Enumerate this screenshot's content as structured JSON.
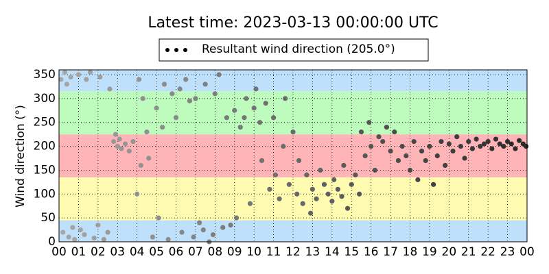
{
  "chart_data": {
    "type": "scatter",
    "title": "Latest time: 2023-03-13 00:00:00 UTC",
    "ylabel": "Wind direction (°)",
    "xlim": [
      0,
      24
    ],
    "ylim": [
      0,
      360
    ],
    "xticks": [
      {
        "value": 0,
        "label": "00"
      },
      {
        "value": 1,
        "label": "01"
      },
      {
        "value": 2,
        "label": "02"
      },
      {
        "value": 3,
        "label": "03"
      },
      {
        "value": 4,
        "label": "04"
      },
      {
        "value": 5,
        "label": "05"
      },
      {
        "value": 6,
        "label": "06"
      },
      {
        "value": 7,
        "label": "07"
      },
      {
        "value": 8,
        "label": "08"
      },
      {
        "value": 9,
        "label": "09"
      },
      {
        "value": 10,
        "label": "10"
      },
      {
        "value": 11,
        "label": "11"
      },
      {
        "value": 12,
        "label": "12"
      },
      {
        "value": 13,
        "label": "13"
      },
      {
        "value": 14,
        "label": "14"
      },
      {
        "value": 15,
        "label": "15"
      },
      {
        "value": 16,
        "label": "16"
      },
      {
        "value": 17,
        "label": "17"
      },
      {
        "value": 18,
        "label": "18"
      },
      {
        "value": 19,
        "label": "19"
      },
      {
        "value": 20,
        "label": "20"
      },
      {
        "value": 21,
        "label": "21"
      },
      {
        "value": 22,
        "label": "22"
      },
      {
        "value": 23,
        "label": "23"
      },
      {
        "value": 24,
        "label": "00"
      }
    ],
    "yticks": [
      0,
      50,
      100,
      150,
      200,
      250,
      300,
      350
    ],
    "grid": true,
    "bands": [
      {
        "from": 0,
        "to": 45,
        "color": "#bfe0fb"
      },
      {
        "from": 45,
        "to": 135,
        "color": "#fffbb1"
      },
      {
        "from": 135,
        "to": 225,
        "color": "#ffb5b8"
      },
      {
        "from": 225,
        "to": 315,
        "color": "#bdfcbd"
      },
      {
        "from": 315,
        "to": 360,
        "color": "#bfe0fb"
      }
    ],
    "color_range": [
      "#a8a8a8",
      "#2a2a2a"
    ],
    "series": [
      {
        "name": "Resultant wind direction (205.0°)",
        "x": [
          0.1,
          0.2,
          0.3,
          0.4,
          0.5,
          0.6,
          0.7,
          0.8,
          1.0,
          1.1,
          1.3,
          1.4,
          1.6,
          1.8,
          2.0,
          2.1,
          2.3,
          2.5,
          2.6,
          2.8,
          2.9,
          3.0,
          3.1,
          3.2,
          3.4,
          3.6,
          3.8,
          4.0,
          4.1,
          4.2,
          4.3,
          4.5,
          4.6,
          4.8,
          5.0,
          5.1,
          5.3,
          5.4,
          5.6,
          5.8,
          6.0,
          6.2,
          6.3,
          6.5,
          6.7,
          6.9,
          7.0,
          7.2,
          7.4,
          7.5,
          7.7,
          7.9,
          8.0,
          8.2,
          8.4,
          8.6,
          8.8,
          9.0,
          9.1,
          9.3,
          9.5,
          9.6,
          9.8,
          10.0,
          10.1,
          10.3,
          10.4,
          10.6,
          10.8,
          11.0,
          11.1,
          11.3,
          11.5,
          11.6,
          11.8,
          12.0,
          12.2,
          12.3,
          12.5,
          12.7,
          12.9,
          13.0,
          13.2,
          13.4,
          13.6,
          13.8,
          14.0,
          14.1,
          14.3,
          14.5,
          14.6,
          14.8,
          15.0,
          15.2,
          15.4,
          15.5,
          15.7,
          15.9,
          16.0,
          16.2,
          16.4,
          16.6,
          16.8,
          17.0,
          17.2,
          17.4,
          17.6,
          17.8,
          18.0,
          18.2,
          18.4,
          18.6,
          18.8,
          19.0,
          19.2,
          19.4,
          19.6,
          19.8,
          20.0,
          20.2,
          20.4,
          20.6,
          20.8,
          21.0,
          21.2,
          21.4,
          21.6,
          21.8,
          22.0,
          22.2,
          22.4,
          22.6,
          22.8,
          23.0,
          23.2,
          23.4,
          23.6,
          23.8,
          23.95
        ],
        "values": [
          340,
          20,
          355,
          330,
          10,
          345,
          30,
          5,
          350,
          25,
          15,
          340,
          355,
          8,
          35,
          345,
          5,
          20,
          320,
          210,
          225,
          200,
          215,
          195,
          205,
          190,
          210,
          100,
          340,
          160,
          300,
          230,
          175,
          10,
          280,
          50,
          240,
          330,
          5,
          310,
          260,
          320,
          20,
          340,
          295,
          10,
          300,
          40,
          25,
          330,
          0,
          15,
          310,
          350,
          30,
          260,
          35,
          275,
          50,
          240,
          260,
          300,
          80,
          280,
          320,
          250,
          170,
          290,
          110,
          260,
          140,
          90,
          200,
          300,
          120,
          230,
          100,
          170,
          80,
          140,
          60,
          110,
          90,
          150,
          120,
          100,
          85,
          130,
          110,
          95,
          160,
          70,
          120,
          140,
          100,
          230,
          180,
          250,
          200,
          150,
          220,
          210,
          240,
          190,
          230,
          170,
          200,
          180,
          150,
          210,
          130,
          190,
          170,
          200,
          120,
          180,
          210,
          160,
          205,
          190,
          220,
          200,
          175,
          210,
          195,
          215,
          200,
          205,
          210,
          195,
          215,
          205,
          200,
          210,
          205,
          195,
          212,
          205,
          200
        ]
      }
    ]
  }
}
